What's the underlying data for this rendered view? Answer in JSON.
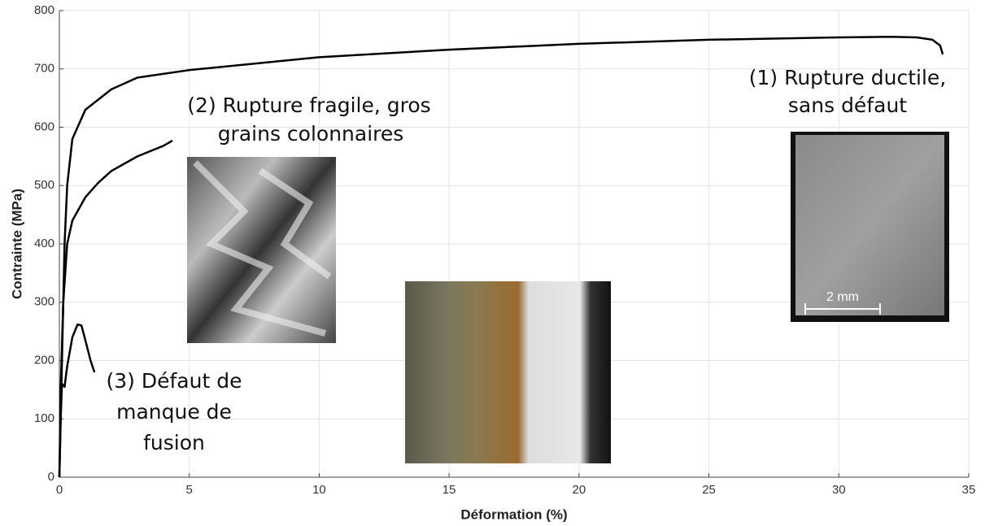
{
  "chart_data": {
    "type": "line",
    "xlabel": "Déformation (%)",
    "ylabel": "Contrainte (MPa)",
    "xlim": [
      0,
      35
    ],
    "xticks": [
      0,
      5,
      10,
      15,
      20,
      25,
      30,
      35
    ],
    "ylim": [
      0,
      800
    ],
    "yticks": [
      0,
      100,
      200,
      300,
      400,
      500,
      600,
      700,
      800
    ],
    "grid": true,
    "series": [
      {
        "color": "#000000",
        "x": [
          0,
          0.1,
          0.2,
          0.3,
          0.5,
          1,
          2,
          3,
          5,
          10,
          15,
          20,
          25,
          30,
          32,
          33,
          33.6,
          33.9,
          34
        ],
        "values": [
          0,
          200,
          400,
          500,
          580,
          630,
          665,
          685,
          698,
          720,
          733,
          743,
          750,
          754,
          755,
          754,
          750,
          740,
          725
        ]
      },
      {
        "color": "#000000",
        "x": [
          0,
          0.05,
          0.15,
          0.3,
          0.5,
          1,
          1.5,
          2,
          3,
          4,
          4.35
        ],
        "values": [
          0,
          150,
          300,
          400,
          440,
          480,
          505,
          525,
          550,
          568,
          577
        ]
      },
      {
        "color": "#000000",
        "x": [
          0,
          0.05,
          0.1,
          0.2,
          0.3,
          0.5,
          0.7,
          0.85,
          1,
          1.2,
          1.35
        ],
        "values": [
          0,
          100,
          160,
          155,
          190,
          240,
          262,
          260,
          235,
          200,
          180
        ]
      }
    ],
    "annotations": [
      {
        "lines": [
          "(1) Rupture ductile,",
          "sans défaut"
        ]
      },
      {
        "lines": [
          "(2) Rupture fragile, gros",
          "grains colonnaires"
        ]
      },
      {
        "lines": [
          "(3) Défaut de",
          "manque de",
          "fusion"
        ]
      }
    ],
    "scale_bar": "2 mm"
  }
}
